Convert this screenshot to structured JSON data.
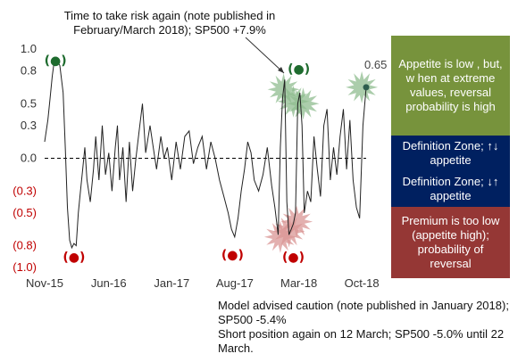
{
  "annotations": {
    "top": "Time  to take risk again (note published in February/March 2018); SP500 +7.9%",
    "bottom_line1": "Model advised caution (note published in January 2018); SP500  -5.4%",
    "bottom_line2": "Short position again on 12 March; SP500 -5.0% until 22 March.",
    "value_label": "0.65"
  },
  "boxes": {
    "green": "Appetite is low , but, w hen at extreme values, reversal probability is high",
    "blue1": "Definition Zone; ↑↓ appetite",
    "blue2": "Definition Zone; ↓↑ appetite",
    "red": "Premium  is too low (appetite high); probability of reversal"
  },
  "colors": {
    "green_box": "#77933C",
    "blue_box": "#002060",
    "red_box": "#953735",
    "green_dot": "#1E6B2E",
    "red_dot": "#C00000",
    "green_burst": "#8FBC8F",
    "red_burst": "#D99594",
    "negative_tick": "#C00000"
  },
  "markers": {
    "green_label": "(●)",
    "red_label": "(●)"
  },
  "chart_data": {
    "type": "line",
    "title": "",
    "xlabel": "",
    "ylabel": "",
    "ylim": [
      -1.0,
      1.0
    ],
    "xlim": [
      2015.83,
      2018.79
    ],
    "x_ticks": [
      {
        "x": 2015.83,
        "label": "Nov-15"
      },
      {
        "x": 2016.42,
        "label": "Jun-16"
      },
      {
        "x": 2017.0,
        "label": "Jan-17"
      },
      {
        "x": 2017.58,
        "label": "Aug-17"
      },
      {
        "x": 2018.17,
        "label": "Mar-18"
      },
      {
        "x": 2018.75,
        "label": "Oct-18"
      }
    ],
    "y_ticks": [
      {
        "y": 1.0,
        "label": "1.0"
      },
      {
        "y": 0.8,
        "label": "0.8"
      },
      {
        "y": 0.5,
        "label": "0.5"
      },
      {
        "y": 0.3,
        "label": "0.3"
      },
      {
        "y": 0.0,
        "label": "0.0"
      },
      {
        "y": -0.3,
        "label": "(0.3)"
      },
      {
        "y": -0.5,
        "label": "(0.5)"
      },
      {
        "y": -0.8,
        "label": "(0.8)"
      },
      {
        "y": -1.0,
        "label": "(1.0)"
      }
    ],
    "zero_line": "dashed",
    "series": [
      {
        "name": "",
        "x": [
          2015.83,
          2015.86,
          2015.88,
          2015.9,
          2015.92,
          2015.95,
          2015.97,
          2016.0,
          2016.02,
          2016.04,
          2016.06,
          2016.08,
          2016.1,
          2016.12,
          2016.14,
          2016.16,
          2016.18,
          2016.2,
          2016.22,
          2016.25,
          2016.28,
          2016.3,
          2016.33,
          2016.36,
          2016.39,
          2016.42,
          2016.45,
          2016.48,
          2016.5,
          2016.52,
          2016.55,
          2016.58,
          2016.61,
          2016.64,
          2016.67,
          2016.7,
          2016.73,
          2016.76,
          2016.8,
          2016.83,
          2016.86,
          2016.9,
          2016.93,
          2016.96,
          2017.0,
          2017.04,
          2017.08,
          2017.12,
          2017.16,
          2017.2,
          2017.24,
          2017.28,
          2017.32,
          2017.36,
          2017.4,
          2017.44,
          2017.48,
          2017.52,
          2017.55,
          2017.58,
          2017.61,
          2017.64,
          2017.67,
          2017.7,
          2017.73,
          2017.76,
          2017.8,
          2017.84,
          2017.88,
          2017.92,
          2017.95,
          2017.98,
          2018.0,
          2018.02,
          2018.04,
          2018.06,
          2018.08,
          2018.1,
          2018.12,
          2018.14,
          2018.16,
          2018.18,
          2018.2,
          2018.22,
          2018.25,
          2018.28,
          2018.31,
          2018.34,
          2018.37,
          2018.4,
          2018.43,
          2018.46,
          2018.49,
          2018.52,
          2018.55,
          2018.58,
          2018.61,
          2018.64,
          2018.67,
          2018.7,
          2018.73,
          2018.76,
          2018.79
        ],
        "values": [
          0.15,
          0.35,
          0.55,
          0.75,
          0.9,
          0.88,
          0.85,
          0.6,
          0.1,
          -0.45,
          -0.75,
          -0.82,
          -0.78,
          -0.8,
          -0.5,
          -0.3,
          -0.1,
          0.1,
          -0.2,
          -0.4,
          -0.1,
          0.2,
          -0.2,
          0.3,
          -0.15,
          0.05,
          -0.3,
          0.1,
          0.3,
          -0.2,
          0.1,
          -0.4,
          0.15,
          -0.3,
          0.0,
          0.25,
          0.5,
          0.05,
          0.3,
          0.1,
          -0.1,
          0.2,
          0.0,
          0.1,
          -0.2,
          0.15,
          -0.1,
          0.2,
          0.25,
          -0.05,
          0.1,
          0.2,
          -0.1,
          0.15,
          0.0,
          -0.2,
          -0.35,
          -0.5,
          -0.65,
          -0.72,
          -0.55,
          -0.3,
          -0.1,
          0.15,
          0.05,
          -0.2,
          -0.3,
          -0.15,
          0.1,
          -0.25,
          -0.45,
          -0.7,
          0.1,
          0.55,
          0.72,
          -0.4,
          -0.7,
          -0.65,
          -0.6,
          -0.5,
          0.5,
          0.6,
          0.3,
          -0.5,
          -0.3,
          -0.4,
          0.2,
          -0.1,
          -0.35,
          0.3,
          0.45,
          -0.2,
          0.1,
          -0.15,
          0.2,
          0.45,
          -0.1,
          0.35,
          -0.2,
          -0.45,
          -0.55,
          0.3,
          0.65
        ]
      }
    ],
    "markers": [
      {
        "x": 2015.93,
        "y": 0.9,
        "kind": "green"
      },
      {
        "x": 2016.1,
        "y": -0.9,
        "kind": "red"
      },
      {
        "x": 2017.56,
        "y": -0.88,
        "kind": "red"
      },
      {
        "x": 2018.12,
        "y": -0.9,
        "kind": "red"
      },
      {
        "x": 2018.17,
        "y": 0.82,
        "kind": "green"
      }
    ],
    "bursts": [
      {
        "x": 2018.03,
        "y": 0.63,
        "kind": "green"
      },
      {
        "x": 2018.12,
        "y": 0.52,
        "kind": "green"
      },
      {
        "x": 2018.21,
        "y": 0.5,
        "kind": "green"
      },
      {
        "x": 2018.75,
        "y": 0.65,
        "kind": "green"
      },
      {
        "x": 2018.0,
        "y": -0.72,
        "kind": "red"
      },
      {
        "x": 2018.08,
        "y": -0.67,
        "kind": "red"
      },
      {
        "x": 2018.15,
        "y": -0.58,
        "kind": "red"
      }
    ]
  }
}
